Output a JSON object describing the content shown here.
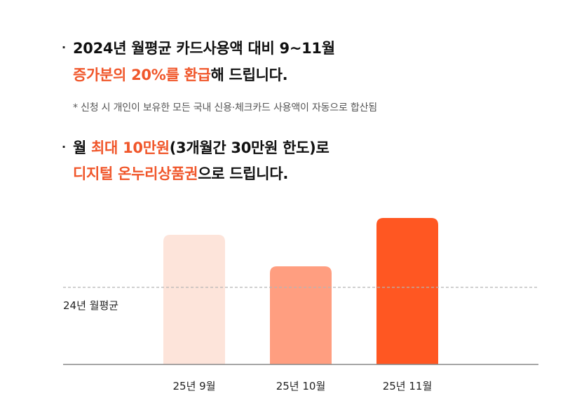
{
  "headline1": {
    "line1": "2024년 월평균 카드사용액 대비 9~11월",
    "line2_highlight": "증가분의 20%를 환급",
    "line2_rest": "해 드립니다."
  },
  "note": "* 신청 시 개인이 보유한 모든 국내 신용·체크카드 사용액이 자동으로 합산됨",
  "headline2": {
    "line1_prefix": "월 ",
    "line1_highlight": "최대 10만원",
    "line1_rest": "(3개월간 30만원 한도)로",
    "line2_highlight": "디지털 온누리상품권",
    "line2_rest": "으로 드립니다."
  },
  "bullet_char": "·",
  "chart_data": {
    "type": "bar",
    "categories": [
      "25년 9월",
      "25년 10월",
      "25년 11월"
    ],
    "values": [
      185,
      140,
      209
    ],
    "colors": [
      "#fde4da",
      "#ff9e80",
      "#ff5722"
    ],
    "baseline": {
      "label": "24년 월평균",
      "value": 110
    },
    "ylim": [
      0,
      230
    ],
    "grid": false
  }
}
